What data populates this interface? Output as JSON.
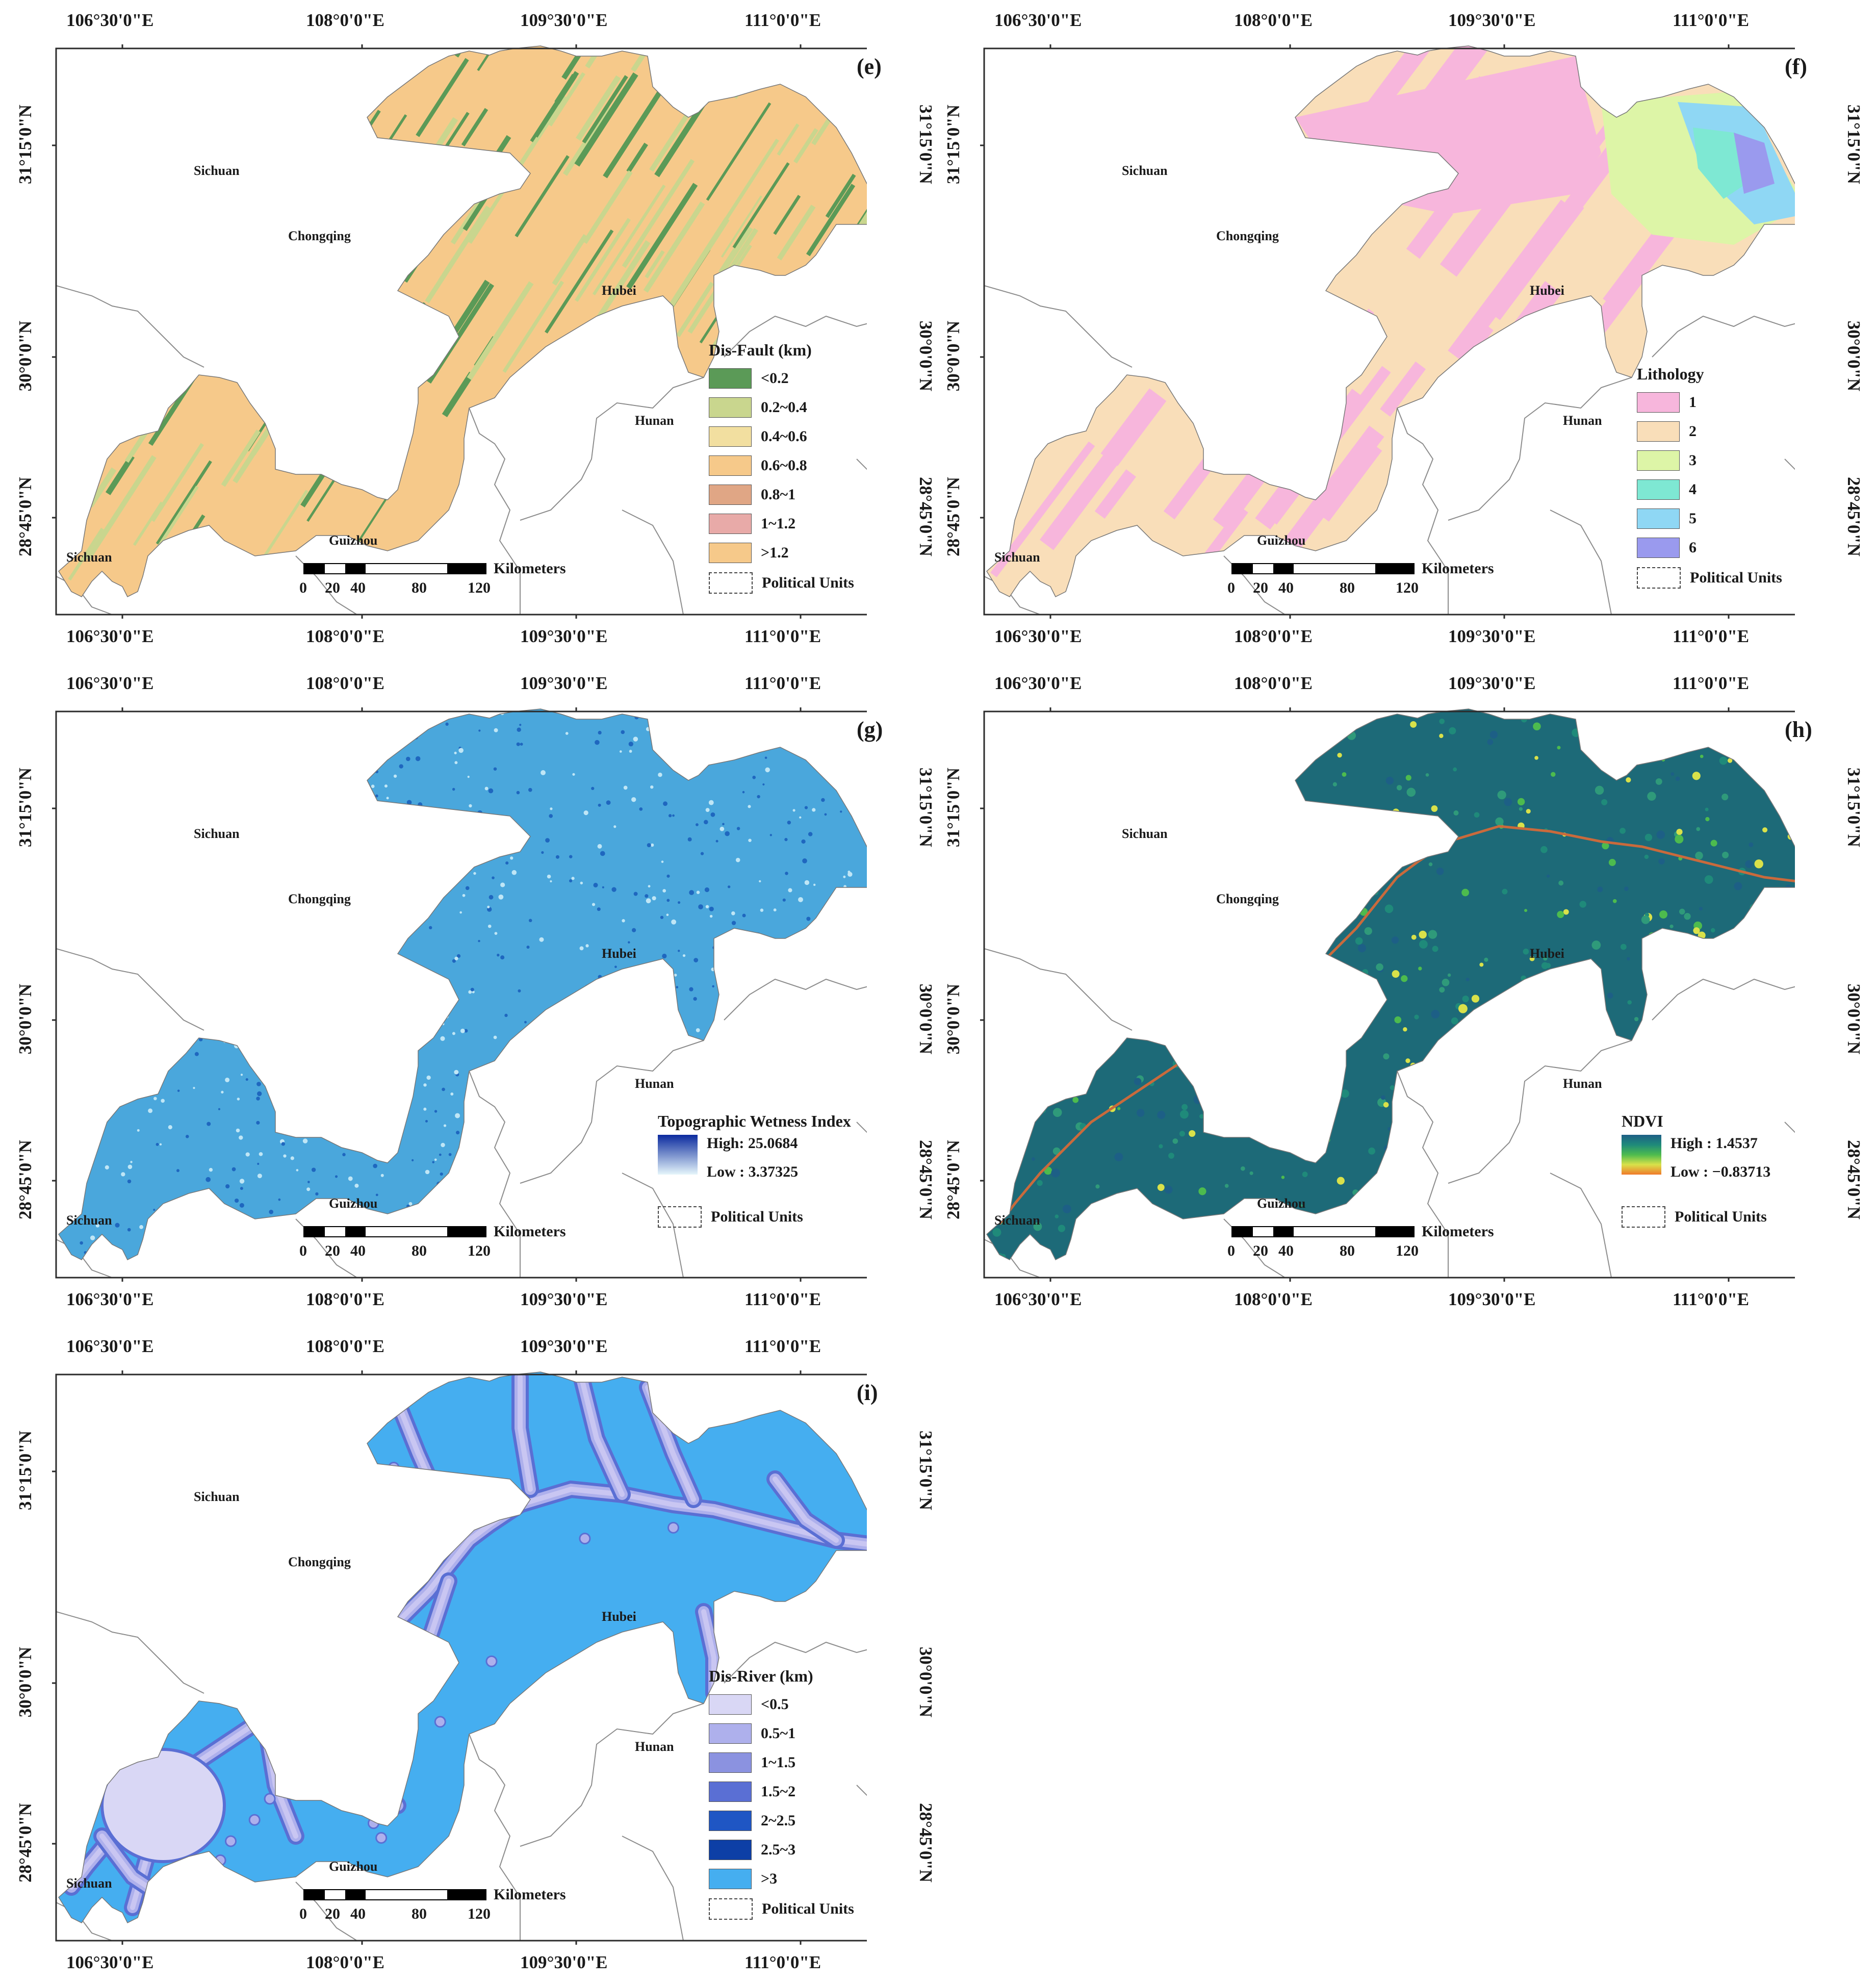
{
  "coords": {
    "top_lon": [
      "106°30'0\"E",
      "108°0'0\"E",
      "109°30'0\"E",
      "111°0'0\"E"
    ],
    "bottom_lon": [
      "106°30'0\"E",
      "108°0'0\"E",
      "109°30'0\"E",
      "111°0'0\"E"
    ],
    "lat": [
      "31°15'0\"N",
      "30°0'0\"N",
      "28°45'0\"N"
    ]
  },
  "provinces": {
    "sichuan": "Sichuan",
    "chongqing": "Chongqing",
    "hubei": "Hubei",
    "hunan": "Hunan",
    "guizhou": "Guizhou"
  },
  "scale": {
    "unit": "Kilometers",
    "ticks": [
      "0",
      "20",
      "40",
      "80",
      "120"
    ]
  },
  "political_units": "Political Units",
  "panels": [
    {
      "label": "(e)",
      "legend": {
        "title": "Dis-Fault (km)",
        "classes": [
          {
            "label": "<0.2",
            "color": "#5b9a57"
          },
          {
            "label": "0.2~0.4",
            "color": "#c9d68e"
          },
          {
            "label": "0.4~0.6",
            "color": "#f2dfa0"
          },
          {
            "label": "0.6~0.8",
            "color": "#f6c98a"
          },
          {
            "label": "0.8~1",
            "color": "#e0a685"
          },
          {
            "label": "1~1.2",
            "color": "#e8aaa8"
          },
          {
            "label": ">1.2",
            "color": "#f6c98a"
          }
        ]
      }
    },
    {
      "label": "(f)",
      "legend": {
        "title": "Lithology",
        "classes": [
          {
            "label": "1",
            "color": "#f7b6dc"
          },
          {
            "label": "2",
            "color": "#f9deb9"
          },
          {
            "label": "3",
            "color": "#ddf5a7"
          },
          {
            "label": "4",
            "color": "#7ee8d3"
          },
          {
            "label": "5",
            "color": "#8fd7f4"
          },
          {
            "label": "6",
            "color": "#9a9aee"
          }
        ]
      }
    },
    {
      "label": "(g)",
      "legend": {
        "title": "Topographic Wetness Index",
        "high": "High: 25.0684",
        "low": "Low : 3.37325",
        "high_color": "#0b2a9e",
        "low_color": "#e6f6fb"
      },
      "fill_color": "#4aa7dc"
    },
    {
      "label": "(h)",
      "legend": {
        "title": "NDVI",
        "high": "High : 1.4537",
        "low": "Low : −0.83713",
        "ramp": [
          "#1d5f86",
          "#1f8a7a",
          "#4dbb4e",
          "#d9e14a",
          "#f07a2a"
        ]
      },
      "fill_color": "#1d6a78",
      "river_color": "#c96a3c"
    },
    {
      "label": "(i)",
      "legend": {
        "title": "Dis-River (km)",
        "classes": [
          {
            "label": "<0.5",
            "color": "#d9d7f5"
          },
          {
            "label": "0.5~1",
            "color": "#aeb0ec"
          },
          {
            "label": "1~1.5",
            "color": "#8b92e0"
          },
          {
            "label": "1.5~2",
            "color": "#5a6fd4"
          },
          {
            "label": "2~2.5",
            "color": "#1f56c4"
          },
          {
            "label": "2.5~3",
            "color": "#0d3fa6"
          },
          {
            "label": ">3",
            "color": "#45aef0"
          }
        ]
      },
      "fill_color": "#45aef0",
      "river_color": "#c9c6f2"
    }
  ]
}
